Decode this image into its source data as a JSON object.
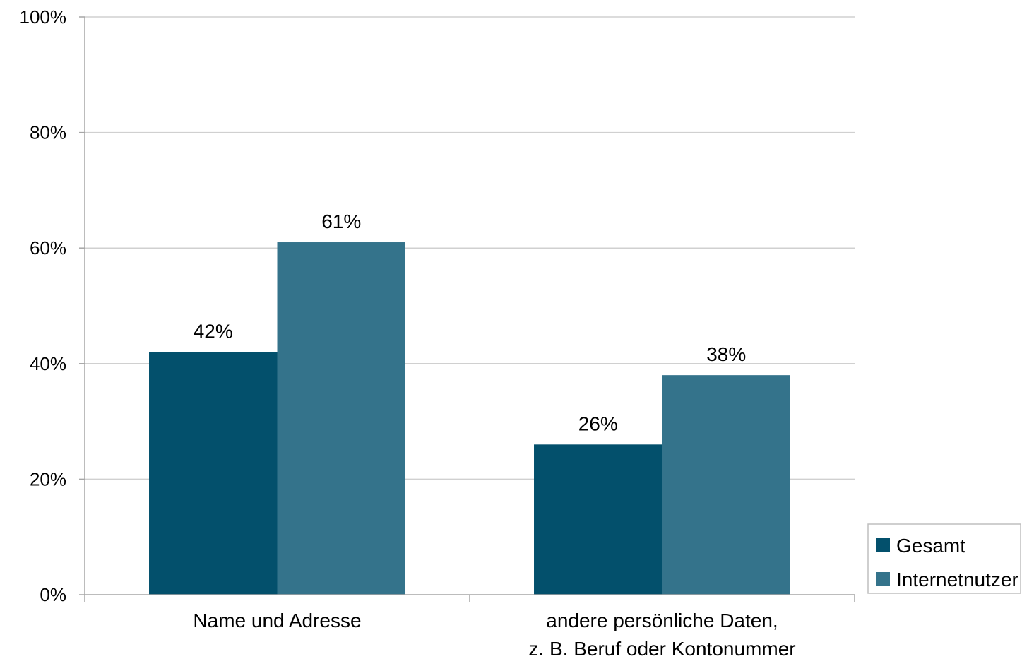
{
  "chart_data": {
    "type": "bar",
    "categories": [
      [
        "Name und Adresse"
      ],
      [
        "andere persönliche Daten,",
        "z. B.  Beruf oder Kontonummer"
      ]
    ],
    "series": [
      {
        "name": "Gesamt",
        "values": [
          42,
          26
        ],
        "labels": [
          "42%",
          "26%"
        ],
        "color": "#03506c"
      },
      {
        "name": "Internetnutzer",
        "values": [
          61,
          38
        ],
        "labels": [
          "61%",
          "38%"
        ],
        "color": "#34738b"
      }
    ],
    "ylim": [
      0,
      100
    ],
    "yticks": [
      0,
      20,
      40,
      60,
      80,
      100
    ],
    "ytick_labels": [
      "0%",
      "20%",
      "40%",
      "60%",
      "80%",
      "100%"
    ],
    "grid": true,
    "legend_position": "bottom-right"
  },
  "colors": {
    "gridline": "#d0d0d0",
    "axis": "#a6a6a6",
    "legend_border": "#bfbfbf"
  }
}
